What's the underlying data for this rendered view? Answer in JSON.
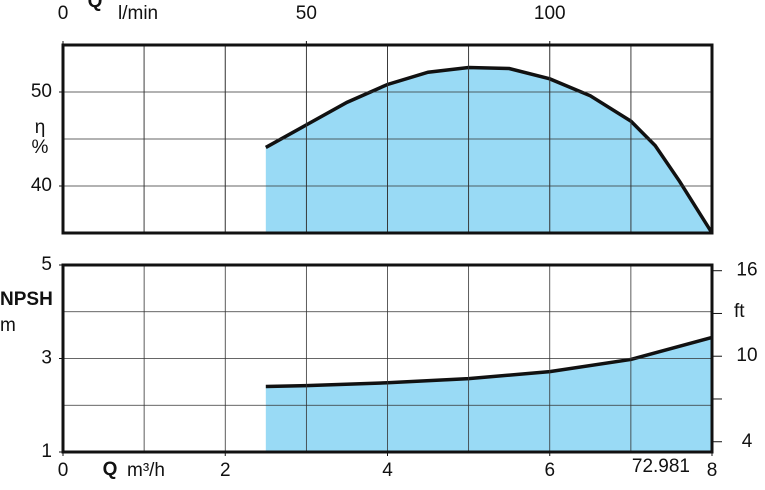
{
  "chart_data": [
    {
      "type": "area",
      "x_label": "Q",
      "x2_unit": "l/min",
      "xlim": [
        0,
        8
      ],
      "x2lim": [
        0,
        133.33
      ],
      "x2ticks": [
        0,
        50,
        100
      ],
      "y_label": "η",
      "y_unit": "%",
      "ylim": [
        35,
        55
      ],
      "yticks": [
        40,
        50
      ],
      "grid": true,
      "series": [
        {
          "color": "#99daf5",
          "x": [
            2.5,
            3,
            3.5,
            4,
            4.5,
            5,
            5.5,
            6,
            6.5,
            7,
            7.3,
            7.6,
            8
          ],
          "values": [
            44.1,
            46.5,
            48.9,
            50.8,
            52.1,
            52.6,
            52.5,
            51.4,
            49.6,
            46.9,
            44.3,
            40.5,
            35.0
          ]
        }
      ]
    },
    {
      "type": "area",
      "x_label": "Q",
      "x_unit": "m³/h",
      "xlim": [
        0,
        8
      ],
      "xticks": [
        0,
        2,
        4,
        6,
        8
      ],
      "y_label": "NPSH",
      "y_unit": "m",
      "ylim": [
        1,
        5
      ],
      "yticks": [
        1,
        3,
        5
      ],
      "y2_unit": "ft",
      "y2lim": [
        3.28,
        16.4
      ],
      "y2ticks": [
        4,
        10,
        16
      ],
      "grid": true,
      "series": [
        {
          "color": "#99daf5",
          "x": [
            2.5,
            3,
            4,
            5,
            6,
            7,
            8
          ],
          "values": [
            2.4,
            2.42,
            2.48,
            2.57,
            2.72,
            2.98,
            3.45
          ]
        }
      ],
      "note": "72.981"
    }
  ]
}
